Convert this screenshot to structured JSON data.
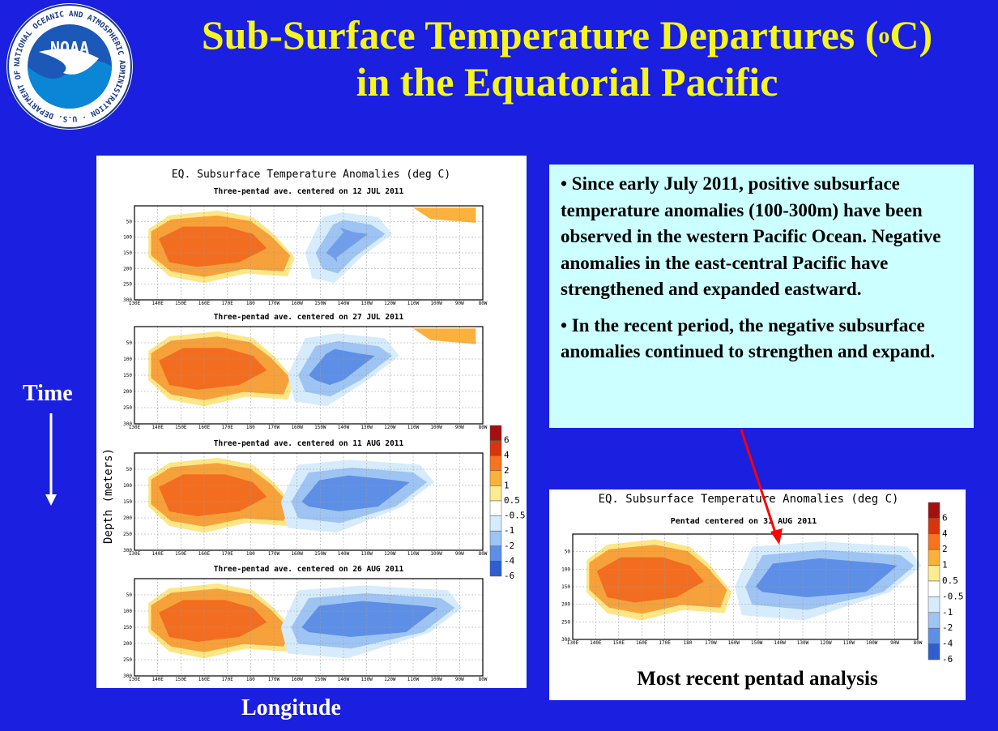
{
  "title": {
    "line1_pre": "Sub-Surface Temperature Departures (",
    "sup": "o",
    "line1_post": "C)",
    "line2": "in  the Equatorial Pacific"
  },
  "logo": {
    "text": "NOAA",
    "ring_text": "NATIONAL OCEANIC AND ATMOSPHERIC ADMINISTRATION · U.S. DEPARTMENT OF COMMERCE"
  },
  "labels": {
    "time": "Time",
    "longitude": "Longitude",
    "depth": "Depth (meters)",
    "recent": "Most recent pentad analysis"
  },
  "bullets": [
    "• Since early July 2011, positive subsurface temperature anomalies (100-300m) have been observed in the western Pacific Ocean. Negative anomalies in the east-central Pacific have strengthened and expanded eastward.",
    "• In the recent period, the negative subsurface anomalies continued to strengthen and expand."
  ],
  "colors": {
    "background": "#1a1fe0",
    "title": "#f5f520",
    "text_box": "#ccffff",
    "arrow": "#ff0000"
  },
  "chart_data": [
    {
      "type": "heatmap",
      "title": "EQ. Subsurface Temperature Anomalies (deg C)",
      "subtitles": [
        "Three-pentad ave. centered on 12 JUL 2011",
        "Three-pentad ave. centered on 27 JUL 2011",
        "Three-pentad ave. centered on 11 AUG 2011",
        "Three-pentad ave. centered on 26 AUG 2011"
      ],
      "xlabel": "",
      "ylabel": "Depth (meters)",
      "x_ticks": [
        "130E",
        "140E",
        "150E",
        "160E",
        "170E",
        "180",
        "170W",
        "160W",
        "150W",
        "140W",
        "130W",
        "120W",
        "110W",
        "100W",
        "90W",
        "80W"
      ],
      "y_ticks": [
        "50",
        "100",
        "150",
        "200",
        "250",
        "300"
      ],
      "ylim": [
        300,
        0
      ],
      "grid": true,
      "colorbar": [
        "6",
        "4",
        "2",
        "1",
        "0.5",
        "-0.5",
        "-1",
        "-2",
        "-4",
        "-6"
      ]
    },
    {
      "type": "heatmap",
      "title": "EQ. Subsurface Temperature Anomalies (deg C)",
      "subtitle": "Pentad centered on 31 AUG 2011",
      "x_ticks": [
        "130E",
        "140E",
        "150E",
        "160E",
        "170E",
        "180",
        "170W",
        "160W",
        "150W",
        "140W",
        "130W",
        "120W",
        "110W",
        "100W",
        "90W",
        "80W"
      ],
      "y_ticks": [
        "50",
        "100",
        "150",
        "200",
        "250",
        "300"
      ],
      "ylim": [
        300,
        0
      ],
      "grid": true,
      "colorbar": [
        "6",
        "4",
        "2",
        "1",
        "0.5",
        "-0.5",
        "-1",
        "-2",
        "-4",
        "-6"
      ]
    }
  ]
}
